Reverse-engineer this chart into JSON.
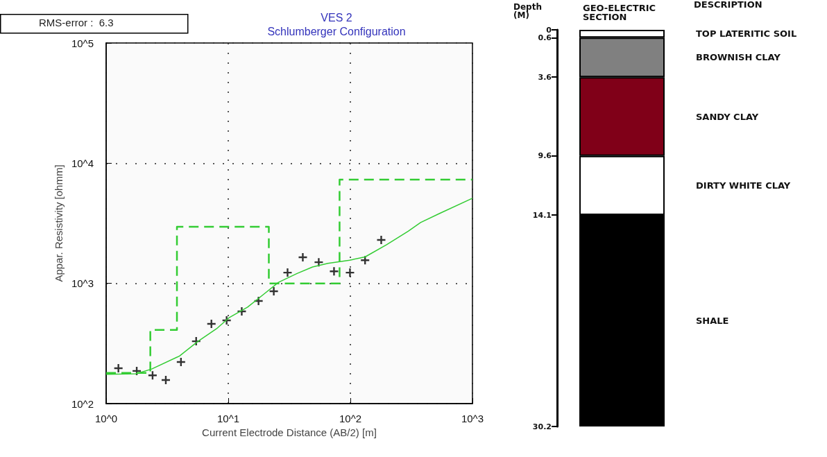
{
  "chart_data": [
    {
      "type": "scatter",
      "title": "VES 2",
      "subtitle": "Schlumberger Configuration",
      "xlabel": "Current Electrode Distance (AB/2) [m]",
      "ylabel": "Appar. Resistivity [ohmm]",
      "annotations": [
        "RMS-error :  6.3"
      ],
      "log": "xy",
      "grid": true,
      "xlim": [
        1,
        1000
      ],
      "xticks": [
        {
          "value": 1,
          "label": "10^0"
        },
        {
          "value": 10,
          "label": "10^1"
        },
        {
          "value": 100,
          "label": "10^2"
        },
        {
          "value": 1000,
          "label": "10^3"
        }
      ],
      "ylim": [
        100,
        100000
      ],
      "yticks": [
        {
          "value": 100,
          "label": "10^2"
        },
        {
          "value": 1000,
          "label": "10^3"
        },
        {
          "value": 10000,
          "label": "10^4"
        },
        {
          "value": 100000,
          "label": "10^5"
        }
      ],
      "series": [
        {
          "type": "scatter",
          "color": "#000000",
          "marker": "cross",
          "x": [
            1.26,
            1.78,
            2.4,
            3.08,
            4.1,
            5.46,
            7.28,
            9.7,
            12.9,
            17.7,
            23.6,
            30.6,
            40.8,
            55.1,
            73.5,
            99.3,
            132,
            179
          ],
          "values": [
            197,
            187,
            172,
            157,
            222,
            330,
            461,
            492,
            585,
            714,
            861,
            1230,
            1650,
            1500,
            1260,
            1230,
            1560,
            2300
          ]
        },
        {
          "type": "line",
          "color": "#33cc33",
          "line_style": "solid",
          "x": [
            1,
            1.76,
            2.36,
            3.99,
            5.66,
            8.03,
            10.1,
            14.4,
            19.3,
            25.8,
            36.6,
            49,
            65.5,
            98.6,
            132,
            198,
            298,
            376,
            535,
            1000
          ],
          "values": [
            175,
            177,
            194,
            249,
            330,
            420,
            516,
            635,
            805,
            1020,
            1210,
            1370,
            1470,
            1560,
            1660,
            2100,
            2720,
            3210,
            3810,
            5110
          ]
        },
        {
          "type": "step",
          "color": "#33cc33",
          "line_style": "dashed",
          "x": [
            1,
            2.3,
            3.8,
            21.5,
            81.6,
            1000
          ],
          "values": [
            180,
            410,
            2960,
            1000,
            7310,
            7310
          ]
        }
      ]
    },
    {
      "type": "bar",
      "stacked": true,
      "title": "GEO-ELECTRIC SECTION",
      "ylabel": "Depth (M)",
      "annotations": [
        "DESCRIPTION"
      ],
      "tick_labels": "y",
      "categories": [
        null
      ],
      "ylim": [
        30.2,
        0
      ],
      "yticks": [
        0,
        0.6,
        3.6,
        9.6,
        14.1,
        30.2
      ],
      "series": [
        {
          "name": "TOP LATERITIC SOIL",
          "color": "#ffffff",
          "values": [
            0.6
          ]
        },
        {
          "name": "BROWNISH CLAY",
          "color": "#808080",
          "values": [
            3.0
          ]
        },
        {
          "name": "SANDY CLAY",
          "color": "#800018",
          "values": [
            6.0
          ]
        },
        {
          "name": "DIRTY WHITE CLAY",
          "color": "#ffffff",
          "values": [
            4.5
          ]
        },
        {
          "name": "SHALE",
          "color": "#000000",
          "values": [
            16.1
          ]
        }
      ]
    }
  ]
}
